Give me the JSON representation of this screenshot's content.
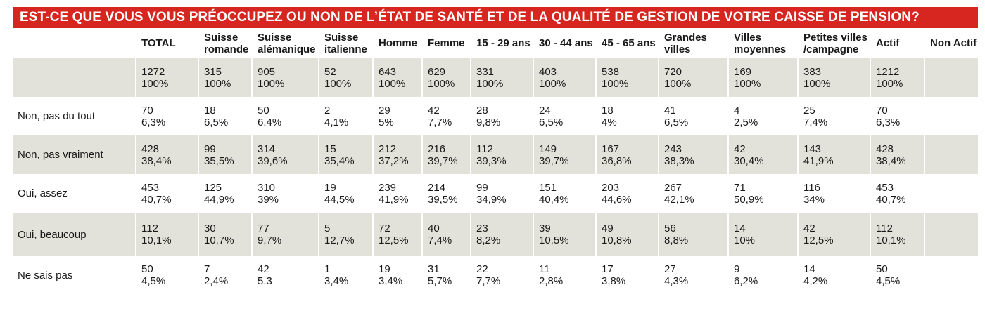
{
  "title": "EST-CE QUE VOUS VOUS PRÉOCCUPEZ OU NON DE L’ÉTAT DE SANTÉ ET DE LA QUALITÉ DE GESTION DE VOTRE CAISSE DE PENSION?",
  "colors": {
    "title_bg": "#d7261f",
    "shade": "#e3e2da"
  },
  "columns": [
    [
      "TOTAL"
    ],
    [
      "Suisse",
      "romande"
    ],
    [
      "Suisse",
      "alémanique"
    ],
    [
      "Suisse",
      "italienne"
    ],
    [
      "Homme"
    ],
    [
      "Femme"
    ],
    [
      "15 - 29 ans"
    ],
    [
      "30 - 44 ans"
    ],
    [
      "45 - 65 ans"
    ],
    [
      "Grandes",
      "villes"
    ],
    [
      "Villes",
      "moyennes"
    ],
    [
      "Petites villes",
      "/campagne"
    ],
    [
      "Actif"
    ],
    [
      "Non Actif"
    ]
  ],
  "rows": [
    {
      "label": "",
      "cells": [
        [
          "1272",
          "100%"
        ],
        [
          "315",
          "100%"
        ],
        [
          "905",
          "100%"
        ],
        [
          "52",
          "100%"
        ],
        [
          "643",
          "100%"
        ],
        [
          "629",
          "100%"
        ],
        [
          "331",
          "100%"
        ],
        [
          "403",
          "100%"
        ],
        [
          "538",
          "100%"
        ],
        [
          "720",
          "100%"
        ],
        [
          "169",
          "100%"
        ],
        [
          "383",
          "100%"
        ],
        [
          "1212",
          "100%"
        ],
        [
          "",
          ""
        ]
      ]
    },
    {
      "label": "Non, pas du tout",
      "cells": [
        [
          "70",
          "6,3%"
        ],
        [
          "18",
          "6,5%"
        ],
        [
          "50",
          "6,4%"
        ],
        [
          "2",
          "4,1%"
        ],
        [
          "29",
          "5%"
        ],
        [
          "42",
          "7,7%"
        ],
        [
          "28",
          "9,8%"
        ],
        [
          "24",
          "6,5%"
        ],
        [
          "18",
          "4%"
        ],
        [
          "41",
          "6,5%"
        ],
        [
          "4",
          "2,5%"
        ],
        [
          "25",
          "7,4%"
        ],
        [
          "70",
          "6,3%"
        ],
        [
          "",
          ""
        ]
      ]
    },
    {
      "label": "Non, pas vraiment",
      "cells": [
        [
          "428",
          "38,4%"
        ],
        [
          "99",
          "35,5%"
        ],
        [
          "314",
          "39,6%"
        ],
        [
          "15",
          "35,4%"
        ],
        [
          "212",
          "37,2%"
        ],
        [
          "216",
          "39,7%"
        ],
        [
          "112",
          "39,3%"
        ],
        [
          "149",
          "39,7%"
        ],
        [
          "167",
          "36,8%"
        ],
        [
          "243",
          "38,3%"
        ],
        [
          "42",
          "30,4%"
        ],
        [
          "143",
          "41,9%"
        ],
        [
          "428",
          "38,4%"
        ],
        [
          "",
          ""
        ]
      ]
    },
    {
      "label": "Oui, assez",
      "cells": [
        [
          "453",
          "40,7%"
        ],
        [
          "125",
          "44,9%"
        ],
        [
          "310",
          "39%"
        ],
        [
          "19",
          "44,5%"
        ],
        [
          "239",
          "41,9%"
        ],
        [
          "214",
          "39,5%"
        ],
        [
          "99",
          "34,9%"
        ],
        [
          "151",
          "40,4%"
        ],
        [
          "203",
          "44,6%"
        ],
        [
          "267",
          "42,1%"
        ],
        [
          "71",
          "50,9%"
        ],
        [
          "116",
          "34%"
        ],
        [
          "453",
          "40,7%"
        ],
        [
          "",
          ""
        ]
      ]
    },
    {
      "label": "Oui, beaucoup",
      "cells": [
        [
          "112",
          "10,1%"
        ],
        [
          "30",
          "10,7%"
        ],
        [
          "77",
          "9,7%"
        ],
        [
          "5",
          "12,7%"
        ],
        [
          "72",
          "12,5%"
        ],
        [
          "40",
          "7,4%"
        ],
        [
          "23",
          "8,2%"
        ],
        [
          "39",
          "10,5%"
        ],
        [
          "49",
          "10,8%"
        ],
        [
          "56",
          "8,8%"
        ],
        [
          "14",
          "10%"
        ],
        [
          "42",
          "12,5%"
        ],
        [
          "112",
          "10,1%"
        ],
        [
          "",
          ""
        ]
      ]
    },
    {
      "label": "Ne sais pas",
      "cells": [
        [
          "50",
          "4,5%"
        ],
        [
          "7",
          "2,4%"
        ],
        [
          "42",
          "5.3"
        ],
        [
          "1",
          "3,4%"
        ],
        [
          "19",
          "3,4%"
        ],
        [
          "31",
          "5,7%"
        ],
        [
          "22",
          "7,7%"
        ],
        [
          "11",
          "2,8%"
        ],
        [
          "17",
          "3,8%"
        ],
        [
          "27",
          "4,3%"
        ],
        [
          "9",
          "6,2%"
        ],
        [
          "14",
          "4,2%"
        ],
        [
          "50",
          "4,5%"
        ],
        [
          "",
          ""
        ]
      ]
    }
  ]
}
